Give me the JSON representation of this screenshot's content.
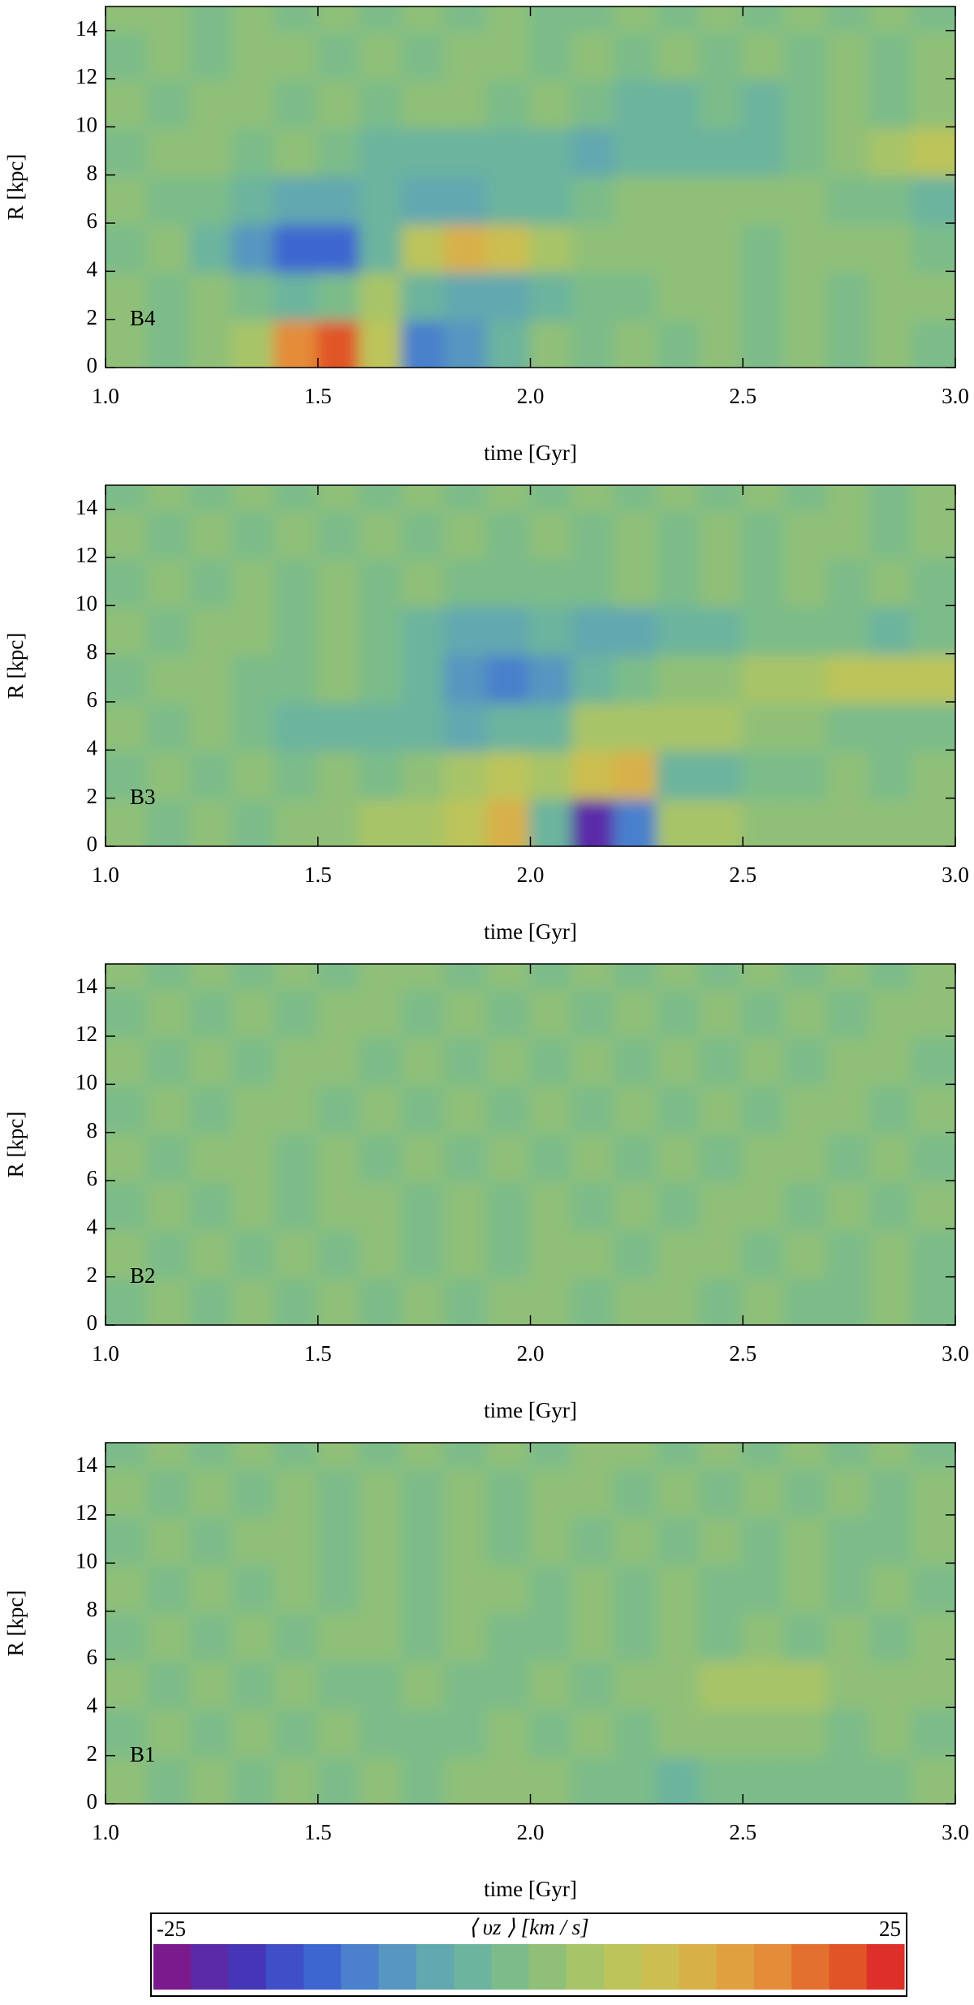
{
  "chart_data": [
    {
      "type": "heatmap",
      "label": "B4",
      "x_label": "time [Gyr]",
      "y_label": "R [kpc]",
      "xlim": [
        1,
        3
      ],
      "ylim": [
        0,
        15
      ],
      "xticks": [
        {
          "value": 1,
          "label": "1.0"
        },
        1.5,
        {
          "value": 2,
          "label": "2.0"
        },
        2.5,
        {
          "value": 3,
          "label": "3.0"
        }
      ],
      "yticks": [
        0,
        2,
        4,
        6,
        8,
        10,
        12,
        14
      ],
      "xbins": [
        1,
        1.1,
        1.2,
        1.3,
        1.4,
        1.5,
        1.6,
        1.7,
        1.8,
        1.9,
        2,
        2.1,
        2.2,
        2.3,
        2.4,
        2.5,
        2.6,
        2.7,
        2.8,
        2.9,
        3
      ],
      "ybins": [
        0,
        2,
        4,
        6,
        8,
        10,
        12,
        14,
        15
      ],
      "z": [
        [
          1,
          -1,
          1,
          3,
          15,
          20,
          5,
          -12,
          -10,
          -3,
          2,
          -1,
          1,
          -1,
          1,
          -1,
          1,
          -1,
          1,
          -1
        ],
        [
          1,
          -1,
          1,
          -2,
          -3,
          -1,
          4,
          -3,
          -6,
          -7,
          -4,
          -2,
          -1,
          1,
          1,
          -1,
          1,
          -1,
          1,
          1
        ],
        [
          -1,
          1,
          -3,
          -8,
          -14,
          -15,
          -5,
          5,
          10,
          8,
          3,
          2,
          1,
          2,
          1,
          -1,
          1,
          2,
          1,
          -1
        ],
        [
          1,
          -1,
          -2,
          -5,
          -6,
          -6,
          -5,
          -7,
          -6,
          -5,
          -4,
          -2,
          1,
          2,
          1,
          1,
          2,
          -1,
          -1,
          -3
        ],
        [
          -1,
          1,
          1,
          -1,
          1,
          -2,
          -3,
          -5,
          -5,
          -5,
          -4,
          -6,
          -5,
          -4,
          -4,
          -3,
          -2,
          2,
          4,
          5
        ],
        [
          1,
          -1,
          1,
          2,
          -1,
          1,
          -1,
          2,
          1,
          -1,
          1,
          -2,
          -3,
          -3,
          -2,
          -3,
          -1,
          2,
          -1,
          1
        ],
        [
          -1,
          1,
          -1,
          1,
          1,
          -1,
          1,
          -1,
          1,
          1,
          -1,
          1,
          -1,
          1,
          -1,
          1,
          -1,
          1,
          -1,
          1
        ],
        [
          1,
          1,
          -1,
          1,
          -1,
          1,
          -1,
          1,
          -1,
          1,
          -1,
          -1,
          1,
          -1,
          1,
          -1,
          1,
          -1,
          1,
          -1
        ]
      ]
    },
    {
      "type": "heatmap",
      "label": "B3",
      "x_label": "time [Gyr]",
      "y_label": "R [kpc]",
      "xlim": [
        1,
        3
      ],
      "ylim": [
        0,
        15
      ],
      "xticks": [
        {
          "value": 1,
          "label": "1.0"
        },
        1.5,
        {
          "value": 2,
          "label": "2.0"
        },
        2.5,
        {
          "value": 3,
          "label": "3.0"
        }
      ],
      "yticks": [
        0,
        2,
        4,
        6,
        8,
        10,
        12,
        14
      ],
      "xbins": [
        1,
        1.1,
        1.2,
        1.3,
        1.4,
        1.5,
        1.6,
        1.7,
        1.8,
        1.9,
        2,
        2.1,
        2.2,
        2.3,
        2.4,
        2.5,
        2.6,
        2.7,
        2.8,
        2.9,
        3
      ],
      "ybins": [
        0,
        2,
        4,
        6,
        8,
        10,
        12,
        14,
        15
      ],
      "z": [
        [
          1,
          -1,
          1,
          -1,
          1,
          2,
          3,
          3,
          6,
          10,
          -3,
          -22,
          -12,
          4,
          3,
          2,
          1,
          1,
          2,
          1
        ],
        [
          -1,
          1,
          -1,
          1,
          -1,
          1,
          -1,
          2,
          3,
          5,
          3,
          8,
          10,
          -3,
          -4,
          -2,
          -1,
          1,
          -1,
          1
        ],
        [
          1,
          -1,
          1,
          -2,
          -3,
          -4,
          -3,
          -4,
          -6,
          -5,
          -3,
          3,
          4,
          4,
          3,
          2,
          1,
          -1,
          -2,
          -1
        ],
        [
          -1,
          1,
          1,
          -1,
          -1,
          1,
          -2,
          -4,
          -10,
          -12,
          -8,
          -4,
          -2,
          1,
          2,
          3,
          4,
          6,
          6,
          7
        ],
        [
          1,
          -1,
          1,
          1,
          -1,
          1,
          -1,
          -3,
          -6,
          -6,
          -4,
          -6,
          -7,
          -4,
          -3,
          -2,
          -1,
          -2,
          -3,
          -2
        ],
        [
          -1,
          1,
          -1,
          1,
          -1,
          1,
          -1,
          1,
          -2,
          -2,
          -1,
          -2,
          1,
          -1,
          1,
          -1,
          1,
          -1,
          1,
          -1
        ],
        [
          1,
          -1,
          1,
          -1,
          1,
          -1,
          1,
          -1,
          1,
          -2,
          1,
          -1,
          1,
          -1,
          1,
          -1,
          1,
          1,
          -1,
          1
        ],
        [
          -1,
          1,
          -1,
          1,
          -1,
          1,
          -1,
          1,
          -1,
          1,
          -1,
          1,
          -1,
          1,
          -1,
          1,
          -1,
          1,
          -1,
          1
        ]
      ]
    },
    {
      "type": "heatmap",
      "label": "B2",
      "x_label": "time [Gyr]",
      "y_label": "R [kpc]",
      "xlim": [
        1,
        3
      ],
      "ylim": [
        0,
        15
      ],
      "xticks": [
        {
          "value": 1,
          "label": "1.0"
        },
        1.5,
        {
          "value": 2,
          "label": "2.0"
        },
        2.5,
        {
          "value": 3,
          "label": "3.0"
        }
      ],
      "yticks": [
        0,
        2,
        4,
        6,
        8,
        10,
        12,
        14
      ],
      "xbins": [
        1,
        1.1,
        1.2,
        1.3,
        1.4,
        1.5,
        1.6,
        1.7,
        1.8,
        1.9,
        2,
        2.1,
        2.2,
        2.3,
        2.4,
        2.5,
        2.6,
        2.7,
        2.8,
        2.9,
        3
      ],
      "ybins": [
        0,
        2,
        4,
        6,
        8,
        10,
        12,
        14,
        15
      ],
      "z": [
        [
          -1,
          1,
          -1,
          1,
          -1,
          1,
          -1,
          1,
          -1,
          1,
          1,
          -1,
          1,
          1,
          -1,
          1,
          -1,
          -1,
          1,
          -1
        ],
        [
          1,
          -1,
          1,
          -1,
          1,
          -1,
          1,
          -1,
          1,
          -1,
          1,
          1,
          -1,
          1,
          1,
          -1,
          1,
          -1,
          1,
          -1
        ],
        [
          -1,
          1,
          -1,
          1,
          -1,
          1,
          1,
          -1,
          1,
          -1,
          1,
          -1,
          1,
          -1,
          1,
          1,
          -1,
          1,
          -1,
          1
        ],
        [
          1,
          -1,
          1,
          1,
          -1,
          1,
          -1,
          1,
          -1,
          1,
          -1,
          1,
          -1,
          1,
          -1,
          1,
          1,
          -1,
          1,
          -1
        ],
        [
          -1,
          1,
          -1,
          1,
          1,
          -1,
          1,
          -1,
          1,
          -1,
          1,
          -1,
          1,
          -1,
          1,
          -1,
          1,
          1,
          -1,
          1
        ],
        [
          1,
          -1,
          1,
          -1,
          1,
          1,
          -1,
          1,
          -1,
          1,
          -1,
          1,
          -1,
          1,
          -1,
          1,
          -1,
          1,
          1,
          -1
        ],
        [
          -1,
          1,
          -1,
          1,
          -1,
          1,
          1,
          -1,
          1,
          -1,
          1,
          -1,
          1,
          -1,
          1,
          -1,
          1,
          -1,
          1,
          1
        ],
        [
          1,
          -1,
          1,
          -1,
          1,
          -1,
          1,
          1,
          -1,
          1,
          -1,
          1,
          -1,
          1,
          -1,
          1,
          -1,
          1,
          -1,
          1
        ]
      ]
    },
    {
      "type": "heatmap",
      "label": "B1",
      "x_label": "time [Gyr]",
      "y_label": "R [kpc]",
      "xlim": [
        1,
        3
      ],
      "ylim": [
        0,
        15
      ],
      "xticks": [
        {
          "value": 1,
          "label": "1.0"
        },
        1.5,
        {
          "value": 2,
          "label": "2.0"
        },
        2.5,
        {
          "value": 3,
          "label": "3.0"
        }
      ],
      "yticks": [
        0,
        2,
        4,
        6,
        8,
        10,
        12,
        14
      ],
      "xbins": [
        1,
        1.1,
        1.2,
        1.3,
        1.4,
        1.5,
        1.6,
        1.7,
        1.8,
        1.9,
        2,
        2.1,
        2.2,
        2.3,
        2.4,
        2.5,
        2.6,
        2.7,
        2.8,
        2.9,
        3
      ],
      "ybins": [
        0,
        2,
        4,
        6,
        8,
        10,
        12,
        14,
        15
      ],
      "z": [
        [
          1,
          -1,
          1,
          -1,
          1,
          -1,
          1,
          -1,
          2,
          2,
          1,
          -1,
          -2,
          -5,
          -2,
          -1,
          -1,
          -1,
          -2,
          1
        ],
        [
          -1,
          1,
          -1,
          1,
          -1,
          1,
          -1,
          -1,
          -1,
          1,
          -1,
          1,
          -1,
          1,
          2,
          1,
          1,
          -1,
          1,
          -1
        ],
        [
          1,
          -1,
          1,
          -1,
          1,
          -1,
          -1,
          1,
          -1,
          -1,
          1,
          -1,
          1,
          2,
          3,
          3,
          3,
          2,
          1,
          1
        ],
        [
          -1,
          1,
          -1,
          1,
          -1,
          1,
          1,
          -1,
          1,
          -1,
          -1,
          1,
          -1,
          1,
          -1,
          1,
          -1,
          1,
          -1,
          1
        ],
        [
          1,
          -1,
          1,
          -1,
          1,
          -1,
          1,
          -1,
          1,
          1,
          -1,
          1,
          -1,
          1,
          -1,
          -1,
          1,
          -1,
          1,
          -1
        ],
        [
          -1,
          1,
          -1,
          1,
          1,
          -1,
          1,
          -1,
          1,
          -1,
          1,
          -1,
          1,
          -1,
          1,
          -1,
          1,
          -1,
          -1,
          1
        ],
        [
          1,
          -1,
          1,
          -1,
          1,
          -1,
          1,
          -1,
          1,
          -1,
          1,
          1,
          -1,
          1,
          -1,
          1,
          -1,
          1,
          -1,
          1
        ],
        [
          -1,
          1,
          -1,
          1,
          -1,
          1,
          -1,
          1,
          -1,
          1,
          -1,
          1,
          1,
          -1,
          1,
          -1,
          1,
          -1,
          1,
          -1
        ]
      ]
    }
  ],
  "colorbar": {
    "label": "⟨ υz ⟩ [km / s]",
    "lim": [
      -25,
      25
    ],
    "ticks": [
      -25,
      25
    ],
    "colors": [
      "#7a1a8c",
      "#5a2aa8",
      "#4536b8",
      "#3f4fc8",
      "#3d66d0",
      "#4a80cc",
      "#5696c0",
      "#62a8b0",
      "#6cb49e",
      "#7cbc8a",
      "#90c078",
      "#a8c468",
      "#bcc45a",
      "#ccbe50",
      "#d8b048",
      "#e0a040",
      "#e48c38",
      "#e47030",
      "#e05428",
      "#dc3028"
    ]
  }
}
